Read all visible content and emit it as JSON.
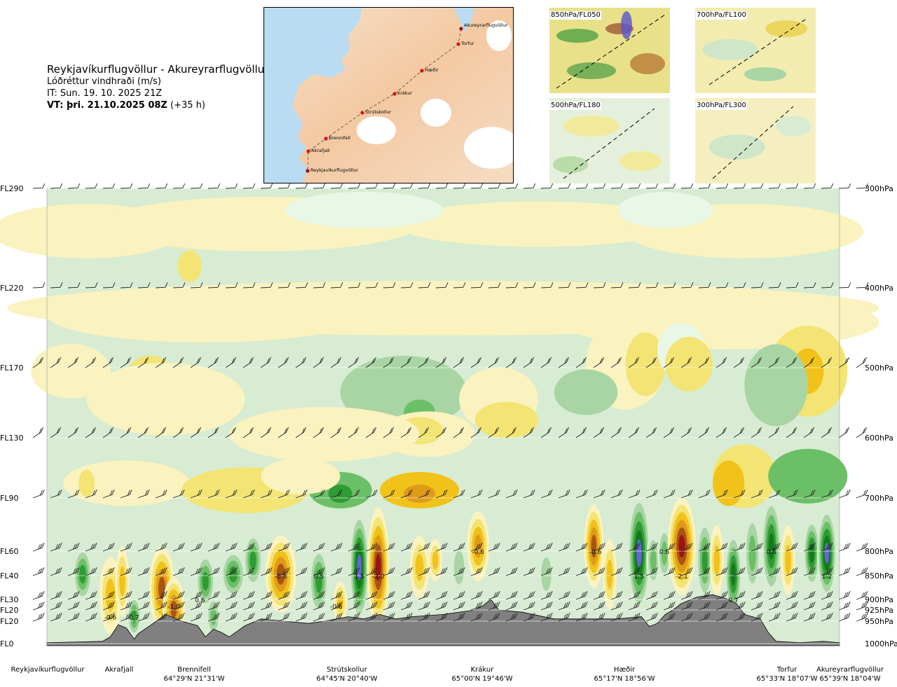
{
  "header": {
    "title": "Reykjavíkurflugvöllur - Akureyrarflugvöllur",
    "subtitle": "Lóðréttur vindhraði (m/s)",
    "it_line": "IT: Sun. 19. 10. 2025 21Z",
    "vt_bold": "VT: þri. 21.10.2025 08Z",
    "vt_rest": " (+35 h)"
  },
  "route_map": {
    "waypoints": [
      "Akureyrarflugvöllur",
      "Torfur",
      "Hæðir",
      "Krákur",
      "Strútskollur",
      "Brennifell",
      "Akrafjall",
      "Reykjavíkurflugvöllur"
    ]
  },
  "thumbnails": [
    {
      "label": "850hPa/FL050"
    },
    {
      "label": "700hPa/FL100"
    },
    {
      "label": "500hPa/FL180"
    },
    {
      "label": "300hPa/FL300"
    }
  ],
  "levels": [
    {
      "fl": "FL290",
      "hpa": "300hPa"
    },
    {
      "fl": "FL220",
      "hpa": "400hPa"
    },
    {
      "fl": "FL170",
      "hpa": "500hPa"
    },
    {
      "fl": "FL130",
      "hpa": "600hPa"
    },
    {
      "fl": "FL90",
      "hpa": "700hPa"
    },
    {
      "fl": "FL60",
      "hpa": "800hPa"
    },
    {
      "fl": "FL40",
      "hpa": "850hPa"
    },
    {
      "fl": "FL30",
      "hpa": "900hPa"
    },
    {
      "fl": "FL20",
      "hpa": "925hPa"
    },
    {
      "fl": "FL20",
      "hpa": "950hPa"
    },
    {
      "fl": "FL0",
      "hpa": "1000hPa"
    }
  ],
  "stations": [
    {
      "name": "Reykjavíkurflugvöllur",
      "coord": ""
    },
    {
      "name": "Akrafjall",
      "coord": ""
    },
    {
      "name": "Brennifell",
      "coord": "64°29'N 21°31'W"
    },
    {
      "name": "Strútskollur",
      "coord": "64°45'N 20°40'W"
    },
    {
      "name": "Krákur",
      "coord": "65°00'N 19°46'W"
    },
    {
      "name": "Hæðir",
      "coord": "65°17'N 18°56'W"
    },
    {
      "name": "Torfur",
      "coord": "65°33'N 18°07'W"
    },
    {
      "name": "Akureyrarflugvöllur",
      "coord": "65°39'N 18°04'W"
    }
  ],
  "chart_data": {
    "type": "heatmap",
    "title": "Reykjavíkurflugvöllur - Akureyrarflugvöllur",
    "subtitle": "Lóðréttur vindhraði (m/s)",
    "y_left_ticks": [
      "FL290",
      "FL220",
      "FL170",
      "FL130",
      "FL90",
      "FL60",
      "FL40",
      "FL30",
      "FL20",
      "FL20",
      "FL0"
    ],
    "y_right_ticks": [
      "300hPa",
      "400hPa",
      "500hPa",
      "600hPa",
      "700hPa",
      "800hPa",
      "850hPa",
      "900hPa",
      "925hPa",
      "950hPa",
      "1000hPa"
    ],
    "x_ticks": [
      "Reykjavíkurflugvöllur",
      "Akrafjall",
      "Brennifell",
      "Strútskollur",
      "Krákur",
      "Hæðir",
      "Torfur",
      "Akureyrarflugvöllur"
    ],
    "annotations": [
      {
        "text": "-0.6",
        "x": 0.08,
        "level_hpa": 940
      },
      {
        "text": "0.7",
        "x": 0.11,
        "level_hpa": 940
      },
      {
        "text": "-1.0",
        "x": 0.16,
        "level_hpa": 915
      },
      {
        "text": "0.6",
        "x": 0.193,
        "level_hpa": 900
      },
      {
        "text": "-0.8",
        "x": 0.295,
        "level_hpa": 850
      },
      {
        "text": "0.5",
        "x": 0.343,
        "level_hpa": 850
      },
      {
        "text": "-0.6",
        "x": 0.365,
        "level_hpa": 915
      },
      {
        "text": "1.5",
        "x": 0.394,
        "level_hpa": 850
      },
      {
        "text": "-2.0",
        "x": 0.418,
        "level_hpa": 850
      },
      {
        "text": "-0.6",
        "x": 0.544,
        "level_hpa": 800
      },
      {
        "text": "-0.6",
        "x": 0.692,
        "level_hpa": 800
      },
      {
        "text": "1.5",
        "x": 0.747,
        "level_hpa": 850
      },
      {
        "text": "0.6",
        "x": 0.779,
        "level_hpa": 800
      },
      {
        "text": "-2.1",
        "x": 0.801,
        "level_hpa": 850
      },
      {
        "text": "0.7",
        "x": 0.866,
        "level_hpa": 900
      },
      {
        "text": "0.6",
        "x": 0.914,
        "level_hpa": 800
      },
      {
        "text": "1.2",
        "x": 0.984,
        "level_hpa": 850
      }
    ],
    "colors": {
      "up_weak": "#d7ecd2",
      "up_1": "#a8d5a3",
      "up_2": "#6bbf66",
      "up_3": "#2e9b33",
      "up_4": "#137a1c",
      "up_5": "#6a62e0",
      "down_weak": "#faf2bf",
      "down_1": "#f3e473",
      "down_2": "#f1c21a",
      "down_3": "#e09a1a",
      "down_4": "#a85412",
      "down_5": "#9b1414",
      "terrain": "#808080"
    },
    "grid": false
  }
}
